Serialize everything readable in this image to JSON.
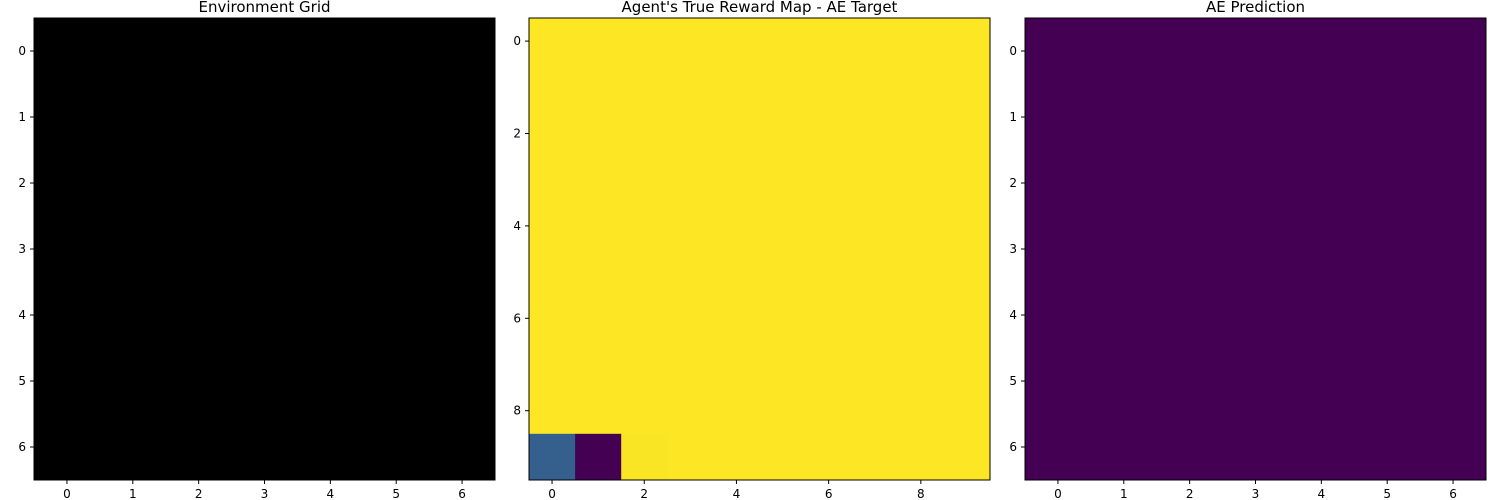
{
  "chart_data": [
    {
      "type": "heatmap",
      "title": "Environment Grid",
      "colormap": "gray",
      "rows": 7,
      "cols": 7,
      "x_ticks": [
        0,
        1,
        2,
        3,
        4,
        5,
        6
      ],
      "y_ticks": [
        0,
        1,
        2,
        3,
        4,
        5,
        6
      ],
      "background_color": "#000000",
      "cells": []
    },
    {
      "type": "heatmap",
      "title": "Agent's True Reward Map - AE Target",
      "colormap": "viridis",
      "rows": 10,
      "cols": 10,
      "x_ticks": [
        0,
        2,
        4,
        6,
        8
      ],
      "y_ticks": [
        0,
        2,
        4,
        6,
        8
      ],
      "background_color": "#fde725",
      "cells": [
        {
          "row": 9,
          "col": 0,
          "color": "#355f8d"
        },
        {
          "row": 9,
          "col": 1,
          "color": "#440154"
        },
        {
          "row": 9,
          "col": 2,
          "color": "#f9e523"
        }
      ]
    },
    {
      "type": "heatmap",
      "title": "AE Prediction",
      "colormap": "viridis",
      "rows": 7,
      "cols": 7,
      "x_ticks": [
        0,
        1,
        2,
        3,
        4,
        5,
        6
      ],
      "y_ticks": [
        0,
        1,
        2,
        3,
        4,
        5,
        6
      ],
      "background_color": "#440154",
      "cells": []
    }
  ]
}
